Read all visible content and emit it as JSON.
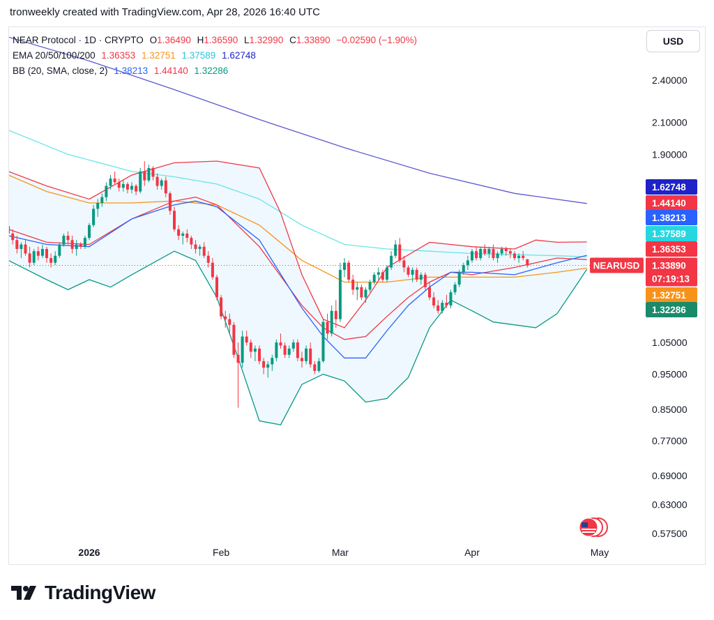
{
  "header": {
    "caption": "tronweekly created with TradingView.com, Apr 28, 2026 16:40 UTC"
  },
  "legend": {
    "symbol_line": "NEAR Protocol · 1D · CRYPTO",
    "ohlc": {
      "o_label": "O",
      "o": "1.36490",
      "h_label": "H",
      "h": "1.36590",
      "l_label": "L",
      "l": "1.32990",
      "c_label": "C",
      "c": "1.33890",
      "change": "−0.02590 (−1.90%)"
    },
    "ema": {
      "label": "EMA 20/50/100/200",
      "v20": "1.36353",
      "v50": "1.32751",
      "v100": "1.37589",
      "v200": "1.62748"
    },
    "bb": {
      "label": "BB (20, SMA, close, 2)",
      "basis": "1.38213",
      "upper": "1.44140",
      "lower": "1.32286"
    }
  },
  "currency_button": "USD",
  "brand": {
    "name": "TradingView"
  },
  "colors": {
    "up": "#089981",
    "down": "#f23645",
    "ema20": "#f23645",
    "ema50": "#f7931a",
    "ema100": "#66e5e5",
    "ema200": "#5b57d1",
    "bb_basis": "#2962ff",
    "bb_upper": "#f23645",
    "bb_lower": "#089981",
    "bb_fill": "#2196f3"
  },
  "icons": {
    "flag": "us-flag-icon",
    "logo": "tradingview-logo-icon"
  },
  "badges": [
    {
      "value": "1.62748",
      "color": "#1e22c7"
    },
    {
      "value": "1.44140",
      "color": "#f23645"
    },
    {
      "value": "1.38213",
      "color": "#2962ff"
    },
    {
      "value": "1.37589",
      "color": "#26d7e0"
    },
    {
      "value": "1.36353",
      "color": "#f23645"
    },
    {
      "value": "1.33890",
      "color": "#f23645",
      "symbol": "NEARUSD",
      "countdown": "07:19:13"
    },
    {
      "value": "1.32751",
      "color": "#f7931a"
    },
    {
      "value": "1.32286",
      "color": "#1b8a6b"
    }
  ],
  "chart_data": {
    "type": "candlestick",
    "scale": "log",
    "y_ticks": [
      "2.40000",
      "2.10000",
      "1.90000",
      "1.05000",
      "0.95000",
      "0.85000",
      "0.77000",
      "0.69000",
      "0.63000",
      "0.57500"
    ],
    "x_ticks": [
      "2026",
      "Feb",
      "Mar",
      "Apr",
      "May"
    ],
    "x_tick_index": [
      0,
      31,
      59,
      90,
      120
    ],
    "ylim": [
      0.55,
      2.75
    ],
    "first_day_index": -19,
    "last_day_index": 117,
    "candles_ohlc": [
      [
        1.515,
        1.54,
        1.46,
        1.48
      ],
      [
        1.48,
        1.5,
        1.43,
        1.45
      ],
      [
        1.45,
        1.47,
        1.39,
        1.41
      ],
      [
        1.41,
        1.44,
        1.37,
        1.43
      ],
      [
        1.43,
        1.45,
        1.38,
        1.39
      ],
      [
        1.39,
        1.42,
        1.33,
        1.35
      ],
      [
        1.35,
        1.41,
        1.34,
        1.4
      ],
      [
        1.4,
        1.42,
        1.36,
        1.38
      ],
      [
        1.38,
        1.43,
        1.37,
        1.41
      ],
      [
        1.41,
        1.42,
        1.35,
        1.37
      ],
      [
        1.37,
        1.39,
        1.33,
        1.35
      ],
      [
        1.35,
        1.4,
        1.34,
        1.38
      ],
      [
        1.38,
        1.44,
        1.37,
        1.43
      ],
      [
        1.43,
        1.48,
        1.42,
        1.47
      ],
      [
        1.47,
        1.49,
        1.43,
        1.45
      ],
      [
        1.45,
        1.47,
        1.39,
        1.41
      ],
      [
        1.41,
        1.45,
        1.38,
        1.43
      ],
      [
        1.43,
        1.44,
        1.41,
        1.42
      ],
      [
        1.42,
        1.47,
        1.41,
        1.46
      ],
      [
        1.46,
        1.53,
        1.45,
        1.52
      ],
      [
        1.52,
        1.62,
        1.51,
        1.6
      ],
      [
        1.6,
        1.65,
        1.56,
        1.63
      ],
      [
        1.63,
        1.68,
        1.61,
        1.66
      ],
      [
        1.66,
        1.74,
        1.64,
        1.72
      ],
      [
        1.72,
        1.78,
        1.7,
        1.76
      ],
      [
        1.76,
        1.8,
        1.73,
        1.74
      ],
      [
        1.74,
        1.76,
        1.69,
        1.71
      ],
      [
        1.71,
        1.75,
        1.69,
        1.73
      ],
      [
        1.73,
        1.74,
        1.68,
        1.7
      ],
      [
        1.7,
        1.74,
        1.68,
        1.72
      ],
      [
        1.72,
        1.73,
        1.67,
        1.69
      ],
      [
        1.69,
        1.82,
        1.68,
        1.8
      ],
      [
        1.8,
        1.86,
        1.72,
        1.75
      ],
      [
        1.75,
        1.84,
        1.74,
        1.82
      ],
      [
        1.82,
        1.83,
        1.75,
        1.77
      ],
      [
        1.77,
        1.79,
        1.7,
        1.72
      ],
      [
        1.72,
        1.76,
        1.7,
        1.75
      ],
      [
        1.75,
        1.77,
        1.66,
        1.68
      ],
      [
        1.68,
        1.69,
        1.57,
        1.59
      ],
      [
        1.59,
        1.61,
        1.49,
        1.5
      ],
      [
        1.5,
        1.52,
        1.45,
        1.47
      ],
      [
        1.47,
        1.49,
        1.43,
        1.48
      ],
      [
        1.48,
        1.5,
        1.44,
        1.46
      ],
      [
        1.46,
        1.47,
        1.41,
        1.43
      ],
      [
        1.43,
        1.45,
        1.39,
        1.41
      ],
      [
        1.41,
        1.43,
        1.38,
        1.42
      ],
      [
        1.42,
        1.44,
        1.37,
        1.38
      ],
      [
        1.38,
        1.4,
        1.33,
        1.35
      ],
      [
        1.35,
        1.37,
        1.28,
        1.29
      ],
      [
        1.29,
        1.3,
        1.2,
        1.21
      ],
      [
        1.21,
        1.22,
        1.13,
        1.14
      ],
      [
        1.14,
        1.16,
        1.1,
        1.13
      ],
      [
        1.13,
        1.15,
        1.08,
        1.11
      ],
      [
        1.11,
        1.12,
        1.0,
        1.01
      ],
      [
        1.01,
        1.05,
        0.855,
        0.985
      ],
      [
        0.985,
        1.09,
        0.97,
        1.07
      ],
      [
        1.07,
        1.09,
        1.04,
        1.05
      ],
      [
        1.05,
        1.06,
        1.0,
        1.02
      ],
      [
        1.02,
        1.04,
        0.99,
        1.03
      ],
      [
        1.03,
        1.04,
        0.98,
        0.99
      ],
      [
        0.99,
        1.0,
        0.95,
        0.97
      ],
      [
        0.97,
        0.99,
        0.94,
        0.98
      ],
      [
        0.98,
        1.01,
        0.96,
        1.0
      ],
      [
        1.0,
        1.06,
        0.99,
        1.05
      ],
      [
        1.05,
        1.08,
        1.03,
        1.04
      ],
      [
        1.04,
        1.05,
        1.0,
        1.01
      ],
      [
        1.01,
        1.04,
        1.0,
        1.03
      ],
      [
        1.03,
        1.06,
        1.02,
        1.05
      ],
      [
        1.05,
        1.06,
        0.99,
        1.0
      ],
      [
        1.0,
        1.02,
        0.97,
        0.99
      ],
      [
        0.99,
        1.04,
        0.98,
        1.03
      ],
      [
        1.03,
        1.05,
        0.97,
        0.98
      ],
      [
        0.98,
        0.99,
        0.95,
        0.96
      ],
      [
        0.96,
        1.0,
        0.955,
        0.99
      ],
      [
        0.99,
        1.13,
        0.985,
        1.12
      ],
      [
        1.12,
        1.15,
        1.06,
        1.08
      ],
      [
        1.08,
        1.18,
        1.07,
        1.16
      ],
      [
        1.16,
        1.2,
        1.1,
        1.13
      ],
      [
        1.13,
        1.35,
        1.12,
        1.32
      ],
      [
        1.32,
        1.37,
        1.29,
        1.35
      ],
      [
        1.35,
        1.36,
        1.27,
        1.28
      ],
      [
        1.28,
        1.3,
        1.22,
        1.24
      ],
      [
        1.24,
        1.27,
        1.2,
        1.25
      ],
      [
        1.25,
        1.26,
        1.2,
        1.21
      ],
      [
        1.21,
        1.25,
        1.19,
        1.24
      ],
      [
        1.24,
        1.28,
        1.23,
        1.27
      ],
      [
        1.27,
        1.31,
        1.26,
        1.3
      ],
      [
        1.3,
        1.33,
        1.28,
        1.31
      ],
      [
        1.31,
        1.32,
        1.27,
        1.28
      ],
      [
        1.28,
        1.34,
        1.27,
        1.33
      ],
      [
        1.33,
        1.4,
        1.32,
        1.38
      ],
      [
        1.38,
        1.45,
        1.37,
        1.43
      ],
      [
        1.43,
        1.46,
        1.35,
        1.36
      ],
      [
        1.36,
        1.38,
        1.31,
        1.33
      ],
      [
        1.33,
        1.34,
        1.29,
        1.3
      ],
      [
        1.3,
        1.33,
        1.27,
        1.32
      ],
      [
        1.32,
        1.33,
        1.27,
        1.28
      ],
      [
        1.28,
        1.31,
        1.26,
        1.3
      ],
      [
        1.3,
        1.31,
        1.24,
        1.25
      ],
      [
        1.25,
        1.27,
        1.2,
        1.21
      ],
      [
        1.21,
        1.23,
        1.17,
        1.18
      ],
      [
        1.18,
        1.2,
        1.15,
        1.16
      ],
      [
        1.16,
        1.2,
        1.15,
        1.19
      ],
      [
        1.19,
        1.22,
        1.17,
        1.18
      ],
      [
        1.18,
        1.24,
        1.17,
        1.23
      ],
      [
        1.23,
        1.27,
        1.22,
        1.26
      ],
      [
        1.26,
        1.32,
        1.25,
        1.31
      ],
      [
        1.31,
        1.35,
        1.3,
        1.34
      ],
      [
        1.34,
        1.38,
        1.32,
        1.36
      ],
      [
        1.36,
        1.41,
        1.35,
        1.4
      ],
      [
        1.4,
        1.42,
        1.36,
        1.37
      ],
      [
        1.37,
        1.42,
        1.36,
        1.41
      ],
      [
        1.41,
        1.43,
        1.38,
        1.39
      ],
      [
        1.39,
        1.42,
        1.37,
        1.41
      ],
      [
        1.41,
        1.43,
        1.36,
        1.37
      ],
      [
        1.37,
        1.4,
        1.35,
        1.39
      ],
      [
        1.39,
        1.42,
        1.38,
        1.41
      ],
      [
        1.41,
        1.42,
        1.38,
        1.4
      ],
      [
        1.4,
        1.41,
        1.37,
        1.39
      ],
      [
        1.39,
        1.4,
        1.36,
        1.37
      ],
      [
        1.37,
        1.39,
        1.35,
        1.38
      ],
      [
        1.38,
        1.4,
        1.36,
        1.37
      ],
      [
        1.3649,
        1.3659,
        1.3299,
        1.3389
      ]
    ],
    "series": [
      {
        "name": "EMA 200",
        "color": "#5b57d1",
        "x": [
          -19,
          0,
          20,
          40,
          60,
          80,
          100,
          117
        ],
        "y": [
          2.75,
          2.55,
          2.33,
          2.12,
          1.94,
          1.79,
          1.68,
          1.627
        ]
      },
      {
        "name": "EMA 100",
        "color": "#66e5e5",
        "x": [
          -19,
          -5,
          10,
          20,
          30,
          40,
          50,
          60,
          70,
          80,
          90,
          100,
          110,
          117
        ],
        "y": [
          2.05,
          1.9,
          1.8,
          1.77,
          1.73,
          1.65,
          1.52,
          1.43,
          1.41,
          1.4,
          1.39,
          1.385,
          1.38,
          1.376
        ]
      },
      {
        "name": "EMA 50",
        "color": "#f7931a",
        "x": [
          -19,
          -10,
          0,
          10,
          20,
          30,
          40,
          50,
          60,
          70,
          80,
          90,
          100,
          110,
          117
        ],
        "y": [
          1.78,
          1.69,
          1.63,
          1.63,
          1.64,
          1.62,
          1.52,
          1.36,
          1.27,
          1.27,
          1.29,
          1.29,
          1.29,
          1.31,
          1.3275
        ]
      },
      {
        "name": "EMA 20",
        "color": "#f23645",
        "x": [
          -19,
          -10,
          0,
          10,
          20,
          25,
          30,
          40,
          50,
          55,
          60,
          65,
          70,
          75,
          80,
          85,
          90,
          100,
          110,
          117
        ],
        "y": [
          1.5,
          1.44,
          1.43,
          1.55,
          1.64,
          1.66,
          1.62,
          1.42,
          1.18,
          1.1,
          1.06,
          1.07,
          1.14,
          1.21,
          1.27,
          1.31,
          1.3,
          1.33,
          1.37,
          1.3635
        ]
      },
      {
        "name": "BB basis",
        "color": "#2962ff",
        "x": [
          -19,
          -10,
          0,
          10,
          20,
          25,
          30,
          40,
          50,
          55,
          60,
          65,
          70,
          75,
          80,
          85,
          90,
          100,
          110,
          117
        ],
        "y": [
          1.47,
          1.43,
          1.42,
          1.55,
          1.62,
          1.64,
          1.61,
          1.45,
          1.17,
          1.07,
          1.0,
          1.0,
          1.09,
          1.18,
          1.25,
          1.31,
          1.31,
          1.3,
          1.35,
          1.382
        ]
      },
      {
        "name": "BB upper",
        "color": "#f23645",
        "x": [
          -19,
          -10,
          0,
          10,
          20,
          30,
          40,
          45,
          50,
          55,
          60,
          65,
          70,
          80,
          90,
          100,
          105,
          110,
          117
        ],
        "y": [
          1.8,
          1.72,
          1.65,
          1.78,
          1.85,
          1.86,
          1.82,
          1.58,
          1.3,
          1.13,
          1.1,
          1.2,
          1.33,
          1.44,
          1.42,
          1.41,
          1.45,
          1.44,
          1.4414
        ]
      },
      {
        "name": "BB lower",
        "color": "#089981",
        "x": [
          -19,
          -10,
          -5,
          0,
          5,
          10,
          20,
          25,
          30,
          35,
          40,
          45,
          50,
          55,
          60,
          65,
          70,
          75,
          80,
          85,
          90,
          95,
          100,
          105,
          110,
          115,
          117
        ],
        "y": [
          1.36,
          1.28,
          1.24,
          1.28,
          1.25,
          1.3,
          1.4,
          1.36,
          1.21,
          1.0,
          0.82,
          0.81,
          0.92,
          0.95,
          0.93,
          0.87,
          0.88,
          0.94,
          1.1,
          1.2,
          1.16,
          1.12,
          1.11,
          1.1,
          1.15,
          1.27,
          1.3229
        ]
      }
    ]
  }
}
